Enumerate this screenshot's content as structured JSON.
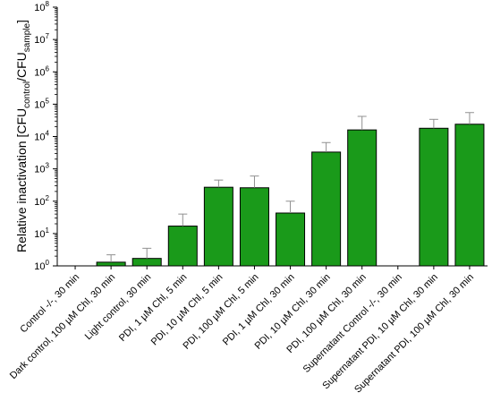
{
  "chart_data": {
    "type": "bar",
    "yscale": "log",
    "ylim": [
      1,
      100000000
    ],
    "ylabel": {
      "prefix": "Relative inactivation [CFU",
      "sub1": "control",
      "middle": "/CFU",
      "sub2": "sample",
      "suffix": "]"
    },
    "yticks": [
      {
        "base": "10",
        "exp": "0",
        "value": 1
      },
      {
        "base": "10",
        "exp": "1",
        "value": 10
      },
      {
        "base": "10",
        "exp": "2",
        "value": 100
      },
      {
        "base": "10",
        "exp": "3",
        "value": 1000
      },
      {
        "base": "10",
        "exp": "4",
        "value": 10000
      },
      {
        "base": "10",
        "exp": "5",
        "value": 100000
      },
      {
        "base": "10",
        "exp": "6",
        "value": 1000000
      },
      {
        "base": "10",
        "exp": "7",
        "value": 10000000
      },
      {
        "base": "10",
        "exp": "8",
        "value": 100000000
      }
    ],
    "categories": [
      "Control -/-, 30 min",
      "Dark control, 100 µM Chl, 30 min",
      "Light control, 30 min",
      "PDI, 1 µM Chl, 5 min",
      "PDI, 10 µM Chl, 5 min",
      "PDI, 100 µM Chl, 5 min",
      "PDI, 1 µM Chl, 30 min",
      "PDI, 10 µM Chl, 30 min",
      "PDI, 100 µM Chl, 30 min",
      "Supernatant Control -/-, 30 min",
      "Supernatant PDI, 10 µM Chl, 30 min",
      "Supernatant PDI, 100 µM Chl, 30 min"
    ],
    "values": [
      1,
      1.3,
      1.7,
      17,
      270,
      260,
      43,
      3300,
      16000,
      1,
      18000,
      24000
    ],
    "errors_upper": [
      null,
      2.2,
      3.5,
      40,
      450,
      600,
      100,
      6500,
      42000,
      null,
      34000,
      55000
    ],
    "bar_color": "#1a9a1a",
    "error_bar_color": "#909090",
    "grid": false,
    "legend": false
  }
}
